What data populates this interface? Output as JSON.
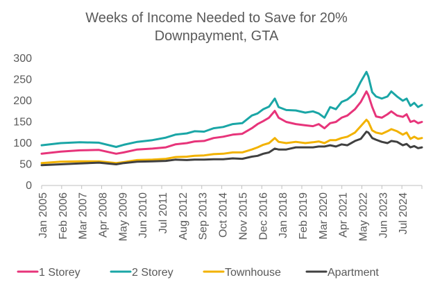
{
  "chart_data": {
    "type": "line",
    "title": "Weeks of Income Needed to Save for 20% Downpayment, GTA",
    "title_lines": [
      "Weeks of Income Needed to Save for 20%",
      "Downpayment, GTA"
    ],
    "xlabel": "",
    "ylabel": "",
    "ylim": [
      0,
      300
    ],
    "yticks": [
      0,
      50,
      100,
      150,
      200,
      250,
      300
    ],
    "grid": false,
    "legend_position": "bottom",
    "x_tick_labels": [
      "Jan 2005",
      "Feb 2006",
      "Mar 2007",
      "Apr 2008",
      "May 2009",
      "Jun 2010",
      "Jul 2011",
      "Aug 2012",
      "Sep 2013",
      "Oct 2014",
      "Nov 2015",
      "Dec 2016",
      "Jan 2018",
      "Feb 2019",
      "Mar 2020",
      "Apr 2021",
      "May 2022",
      "Jun 2023",
      "Jul 2024"
    ],
    "x_start": 2005.0,
    "x_end": 2024.9,
    "series": [
      {
        "name": "1 Storey",
        "color": "#E7347A",
        "x": [
          2005.0,
          2006.0,
          2007.0,
          2008.0,
          2008.9,
          2009.3,
          2010.0,
          2010.8,
          2011.5,
          2012.0,
          2012.6,
          2013.0,
          2013.5,
          2014.0,
          2014.5,
          2015.0,
          2015.5,
          2016.0,
          2016.3,
          2016.6,
          2016.9,
          2017.2,
          2017.4,
          2017.8,
          2018.3,
          2018.8,
          2019.2,
          2019.5,
          2019.8,
          2020.1,
          2020.4,
          2020.7,
          2021.0,
          2021.4,
          2021.7,
          2022.0,
          2022.1,
          2022.3,
          2022.5,
          2022.8,
          2023.1,
          2023.3,
          2023.6,
          2023.9,
          2024.1,
          2024.3,
          2024.5,
          2024.7,
          2024.9
        ],
        "values": [
          75,
          80,
          83,
          84,
          75,
          78,
          85,
          87,
          90,
          97,
          100,
          104,
          105,
          112,
          115,
          120,
          122,
          135,
          145,
          152,
          160,
          176,
          160,
          150,
          145,
          142,
          140,
          145,
          135,
          147,
          150,
          160,
          165,
          180,
          197,
          222,
          213,
          185,
          163,
          160,
          168,
          175,
          165,
          162,
          168,
          150,
          153,
          147,
          150
        ]
      },
      {
        "name": "2 Storey",
        "color": "#1AA6A6",
        "x": [
          2005.0,
          2006.0,
          2007.0,
          2008.0,
          2008.9,
          2009.3,
          2010.0,
          2010.8,
          2011.5,
          2012.0,
          2012.6,
          2013.0,
          2013.5,
          2014.0,
          2014.5,
          2015.0,
          2015.5,
          2016.0,
          2016.3,
          2016.6,
          2016.9,
          2017.2,
          2017.4,
          2017.8,
          2018.3,
          2018.8,
          2019.2,
          2019.5,
          2019.8,
          2020.1,
          2020.4,
          2020.7,
          2021.0,
          2021.4,
          2021.7,
          2022.0,
          2022.1,
          2022.3,
          2022.5,
          2022.8,
          2023.1,
          2023.3,
          2023.6,
          2023.9,
          2024.1,
          2024.3,
          2024.5,
          2024.7,
          2024.9
        ],
        "values": [
          95,
          100,
          102,
          101,
          91,
          96,
          103,
          107,
          113,
          120,
          123,
          128,
          127,
          135,
          138,
          145,
          147,
          165,
          170,
          180,
          186,
          205,
          185,
          178,
          177,
          172,
          175,
          170,
          160,
          185,
          180,
          197,
          203,
          218,
          245,
          268,
          257,
          220,
          210,
          205,
          210,
          222,
          210,
          200,
          205,
          188,
          195,
          185,
          190
        ]
      },
      {
        "name": "Townhouse",
        "color": "#F2B200",
        "x": [
          2005.0,
          2006.0,
          2007.0,
          2008.0,
          2008.9,
          2009.3,
          2010.0,
          2010.8,
          2011.5,
          2012.0,
          2012.6,
          2013.0,
          2013.5,
          2014.0,
          2014.5,
          2015.0,
          2015.5,
          2016.0,
          2016.3,
          2016.6,
          2016.9,
          2017.2,
          2017.4,
          2017.8,
          2018.3,
          2018.8,
          2019.2,
          2019.5,
          2019.8,
          2020.1,
          2020.4,
          2020.7,
          2021.0,
          2021.4,
          2021.7,
          2022.0,
          2022.1,
          2022.3,
          2022.5,
          2022.8,
          2023.1,
          2023.3,
          2023.6,
          2023.9,
          2024.1,
          2024.3,
          2024.5,
          2024.7,
          2024.9
        ],
        "values": [
          53,
          56,
          57,
          57,
          53,
          55,
          60,
          61,
          63,
          67,
          68,
          70,
          71,
          74,
          75,
          78,
          78,
          85,
          90,
          96,
          100,
          112,
          103,
          100,
          103,
          100,
          102,
          104,
          100,
          107,
          107,
          112,
          115,
          125,
          140,
          155,
          150,
          130,
          125,
          122,
          128,
          133,
          128,
          120,
          125,
          110,
          115,
          110,
          112
        ]
      },
      {
        "name": "Apartment",
        "color": "#404040",
        "x": [
          2005.0,
          2006.0,
          2007.0,
          2008.0,
          2008.9,
          2009.3,
          2010.0,
          2010.8,
          2011.5,
          2012.0,
          2012.6,
          2013.0,
          2013.5,
          2014.0,
          2014.5,
          2015.0,
          2015.5,
          2016.0,
          2016.3,
          2016.6,
          2016.9,
          2017.2,
          2017.4,
          2017.8,
          2018.3,
          2018.8,
          2019.2,
          2019.5,
          2019.8,
          2020.1,
          2020.4,
          2020.7,
          2021.0,
          2021.4,
          2021.7,
          2022.0,
          2022.1,
          2022.3,
          2022.5,
          2022.8,
          2023.1,
          2023.3,
          2023.6,
          2023.9,
          2024.1,
          2024.3,
          2024.5,
          2024.7,
          2024.9
        ],
        "values": [
          48,
          50,
          52,
          54,
          50,
          53,
          56,
          57,
          58,
          61,
          60,
          61,
          61,
          62,
          62,
          64,
          63,
          68,
          70,
          75,
          78,
          87,
          85,
          85,
          90,
          90,
          90,
          92,
          92,
          95,
          92,
          97,
          95,
          105,
          110,
          127,
          125,
          112,
          108,
          103,
          100,
          105,
          103,
          95,
          98,
          90,
          93,
          88,
          90
        ]
      }
    ]
  }
}
